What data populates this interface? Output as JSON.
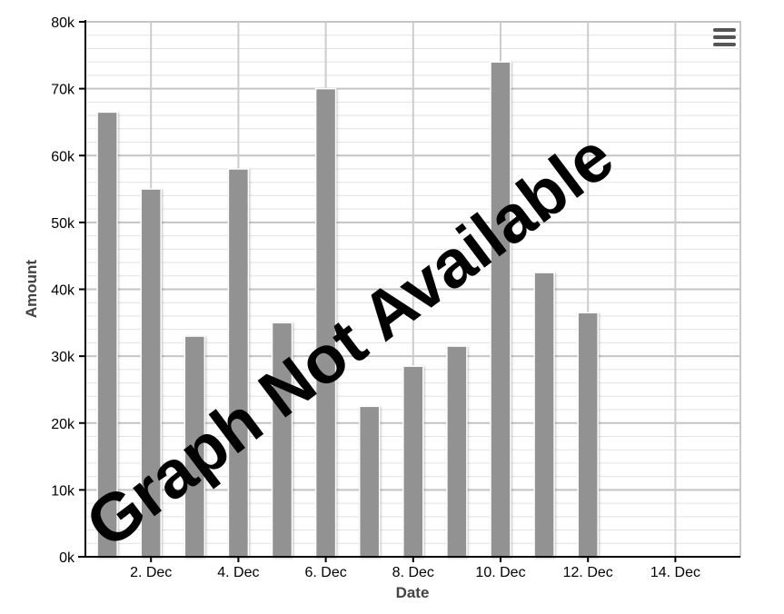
{
  "chart_data": {
    "type": "bar",
    "xlabel": "Date",
    "ylabel": "Amount",
    "ylim": [
      0,
      80000
    ],
    "y_tick_labels": [
      "0k",
      "10k",
      "20k",
      "30k",
      "40k",
      "50k",
      "60k",
      "70k",
      "80k"
    ],
    "x_tick_labels": [
      "2. Dec",
      "4. Dec",
      "6. Dec",
      "8. Dec",
      "10. Dec",
      "12. Dec",
      "14. Dec"
    ],
    "categories": [
      "1. Dec",
      "2. Dec",
      "3. Dec",
      "4. Dec",
      "5. Dec",
      "6. Dec",
      "7. Dec",
      "8. Dec",
      "9. Dec",
      "10. Dec",
      "11. Dec",
      "12. Dec"
    ],
    "values": [
      66500,
      55000,
      33000,
      58000,
      35000,
      70000,
      22500,
      28500,
      31500,
      74000,
      42500,
      36500
    ],
    "bar_color": "#929292",
    "grid": true,
    "watermark": "Graph Not Available"
  },
  "menu": {
    "icon": "hamburger-menu-icon"
  }
}
